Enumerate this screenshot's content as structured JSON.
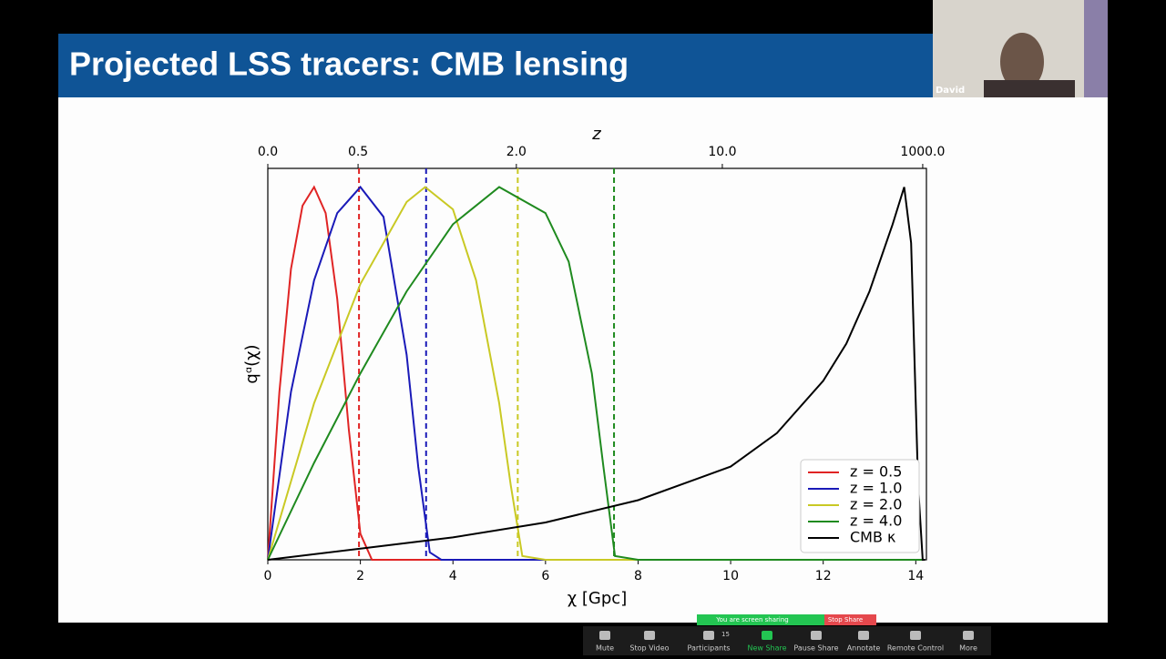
{
  "slide": {
    "title": "Projected LSS tracers: CMB lensing"
  },
  "video": {
    "name": "David"
  },
  "share_banner": {
    "status": "You are screen sharing",
    "stop": "Stop Share"
  },
  "toolbar": {
    "items": [
      "Mute",
      "Stop Video",
      "Participants",
      "New Share",
      "Pause Share",
      "Annotate",
      "Remote Control",
      "More"
    ],
    "participants_count": "15"
  },
  "chart_data": {
    "type": "line",
    "xlabel": "χ [Gpc]",
    "ylabel": "qᵅ(χ)",
    "x2label": "z",
    "xlim": [
      0,
      14.23
    ],
    "ylim": [
      0,
      1.05
    ],
    "xticks": [
      0,
      2,
      4,
      6,
      8,
      10,
      12,
      14
    ],
    "x2_tick_positions": [
      0,
      1.95,
      5.37,
      9.82,
      14.15
    ],
    "x2_tick_labels": [
      "0.0",
      "0.5",
      "2.0",
      "10.0",
      "1000.0"
    ],
    "legend": "lower right",
    "series": [
      {
        "name": "z = 0.5",
        "color": "#e02424",
        "source_chi": 1.97,
        "x": [
          0,
          0.25,
          0.5,
          0.75,
          1.0,
          1.25,
          1.5,
          1.75,
          2.0,
          2.25,
          14.2
        ],
        "values": [
          0,
          0.45,
          0.78,
          0.95,
          1.0,
          0.93,
          0.7,
          0.35,
          0.07,
          0,
          0
        ]
      },
      {
        "name": "z = 1.0",
        "color": "#1a1ab8",
        "source_chi": 3.42,
        "x": [
          0,
          0.5,
          1,
          1.5,
          2,
          2.5,
          3,
          3.25,
          3.5,
          3.75,
          14.2
        ],
        "values": [
          0,
          0.45,
          0.75,
          0.93,
          1.0,
          0.92,
          0.55,
          0.25,
          0.02,
          0,
          0
        ]
      },
      {
        "name": "z = 2.0",
        "color": "#c9c924",
        "source_chi": 5.4,
        "x": [
          0,
          1,
          2,
          3,
          3.4,
          4,
          4.5,
          5,
          5.25,
          5.5,
          6,
          14.2
        ],
        "values": [
          0,
          0.42,
          0.74,
          0.96,
          1.0,
          0.94,
          0.75,
          0.42,
          0.2,
          0.01,
          0,
          0
        ]
      },
      {
        "name": "z = 4.0",
        "color": "#1f8a1f",
        "source_chi": 7.48,
        "x": [
          0,
          1,
          2,
          3,
          4,
          5,
          6,
          6.5,
          7,
          7.25,
          7.5,
          8,
          14.2
        ],
        "values": [
          0,
          0.26,
          0.5,
          0.72,
          0.9,
          1.0,
          0.93,
          0.8,
          0.5,
          0.25,
          0.01,
          0,
          0
        ]
      },
      {
        "name": "CMB κ",
        "color": "#000000",
        "x": [
          0,
          2,
          4,
          6,
          8,
          10,
          11,
          12,
          12.5,
          13,
          13.5,
          13.75,
          13.9,
          14.05,
          14.15,
          14.2
        ],
        "values": [
          0,
          0.03,
          0.06,
          0.1,
          0.16,
          0.25,
          0.34,
          0.48,
          0.58,
          0.72,
          0.9,
          1.0,
          0.85,
          0.2,
          0,
          0
        ]
      }
    ]
  }
}
